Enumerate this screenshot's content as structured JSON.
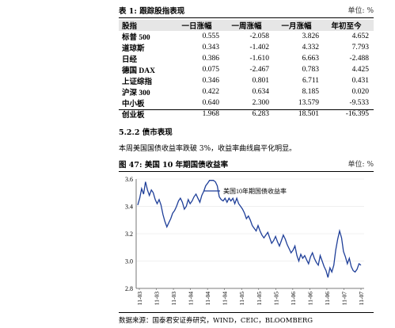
{
  "table": {
    "caption": "表 1:  跟踪股指表现",
    "unit": "单位: %",
    "headers": [
      "股指",
      "一日涨幅",
      "一周涨幅",
      "一月涨幅",
      "年初至今"
    ],
    "rows": [
      [
        "标普 500",
        "0.555",
        "-2.058",
        "3.826",
        "4.652"
      ],
      [
        "道琼斯",
        "0.343",
        "-1.402",
        "4.332",
        "7.793"
      ],
      [
        "日经",
        "0.386",
        "-1.610",
        "6.663",
        "-2.488"
      ],
      [
        "德国 DAX",
        "0.075",
        "-2.467",
        "0.783",
        "4.425"
      ],
      [
        "上证综指",
        "0.346",
        "0.801",
        "6.711",
        "0.431"
      ],
      [
        "沪深 300",
        "0.422",
        "0.634",
        "8.185",
        "0.020"
      ],
      [
        "中小板",
        "0.640",
        "2.300",
        "13.579",
        "-9.533"
      ],
      [
        "创业板",
        "1.968",
        "6.283",
        "18.501",
        "-16.395"
      ]
    ]
  },
  "section_title": "5.2.2  债市表现",
  "paragraph": "本周美国国债收益率跌破 3%，收益率曲线扁平化明显。",
  "figure": {
    "caption": "图 47:  美国 10 年期国债收益率",
    "unit": "单位: %"
  },
  "source": "数据来源：国泰君安证券研究，WIND，CEIC，BLOOMBERG",
  "chart_data": {
    "type": "line",
    "title": "",
    "xlabel": "",
    "ylabel": "",
    "ylim": [
      2.8,
      3.6
    ],
    "yticks": [
      "3.6",
      "3.4",
      "3.2",
      "3.0",
      "2.8"
    ],
    "ytick_values": [
      3.6,
      3.4,
      3.2,
      3.0,
      2.8
    ],
    "xticks": [
      "11-03",
      "11-03",
      "11-03",
      "11-04",
      "11-04",
      "11-04",
      "11-05",
      "11-05",
      "11-05",
      "11-06",
      "11-06",
      "11-06",
      "11-07",
      "11-07"
    ],
    "legend_position": "top-center",
    "color": "#1f3f99",
    "series": [
      {
        "name": "美国10年期国债收益率",
        "values": [
          3.41,
          3.46,
          3.53,
          3.49,
          3.58,
          3.52,
          3.48,
          3.52,
          3.5,
          3.45,
          3.42,
          3.45,
          3.41,
          3.34,
          3.29,
          3.25,
          3.28,
          3.31,
          3.35,
          3.37,
          3.4,
          3.44,
          3.46,
          3.43,
          3.38,
          3.4,
          3.45,
          3.42,
          3.44,
          3.47,
          3.49,
          3.46,
          3.43,
          3.48,
          3.51,
          3.55,
          3.57,
          3.59,
          3.59,
          3.59,
          3.58,
          3.55,
          3.47,
          3.45,
          3.44,
          3.46,
          3.43,
          3.46,
          3.44,
          3.46,
          3.42,
          3.46,
          3.42,
          3.4,
          3.38,
          3.35,
          3.31,
          3.33,
          3.3,
          3.26,
          3.24,
          3.22,
          3.26,
          3.22,
          3.19,
          3.17,
          3.19,
          3.21,
          3.17,
          3.13,
          3.15,
          3.18,
          3.14,
          3.11,
          3.15,
          3.19,
          3.16,
          3.12,
          3.09,
          3.06,
          3.08,
          3.11,
          3.04,
          3.0,
          3.05,
          3.02,
          3.04,
          3.01,
          2.98,
          3.03,
          3.06,
          3.02,
          2.99,
          2.97,
          3.04,
          3.0,
          2.96,
          2.93,
          2.88,
          2.95,
          2.92,
          2.97,
          3.08,
          3.16,
          3.22,
          3.17,
          3.07,
          3.03,
          2.98,
          3.02,
          2.96,
          2.93,
          2.92,
          2.94,
          2.98,
          2.97
        ]
      }
    ]
  }
}
